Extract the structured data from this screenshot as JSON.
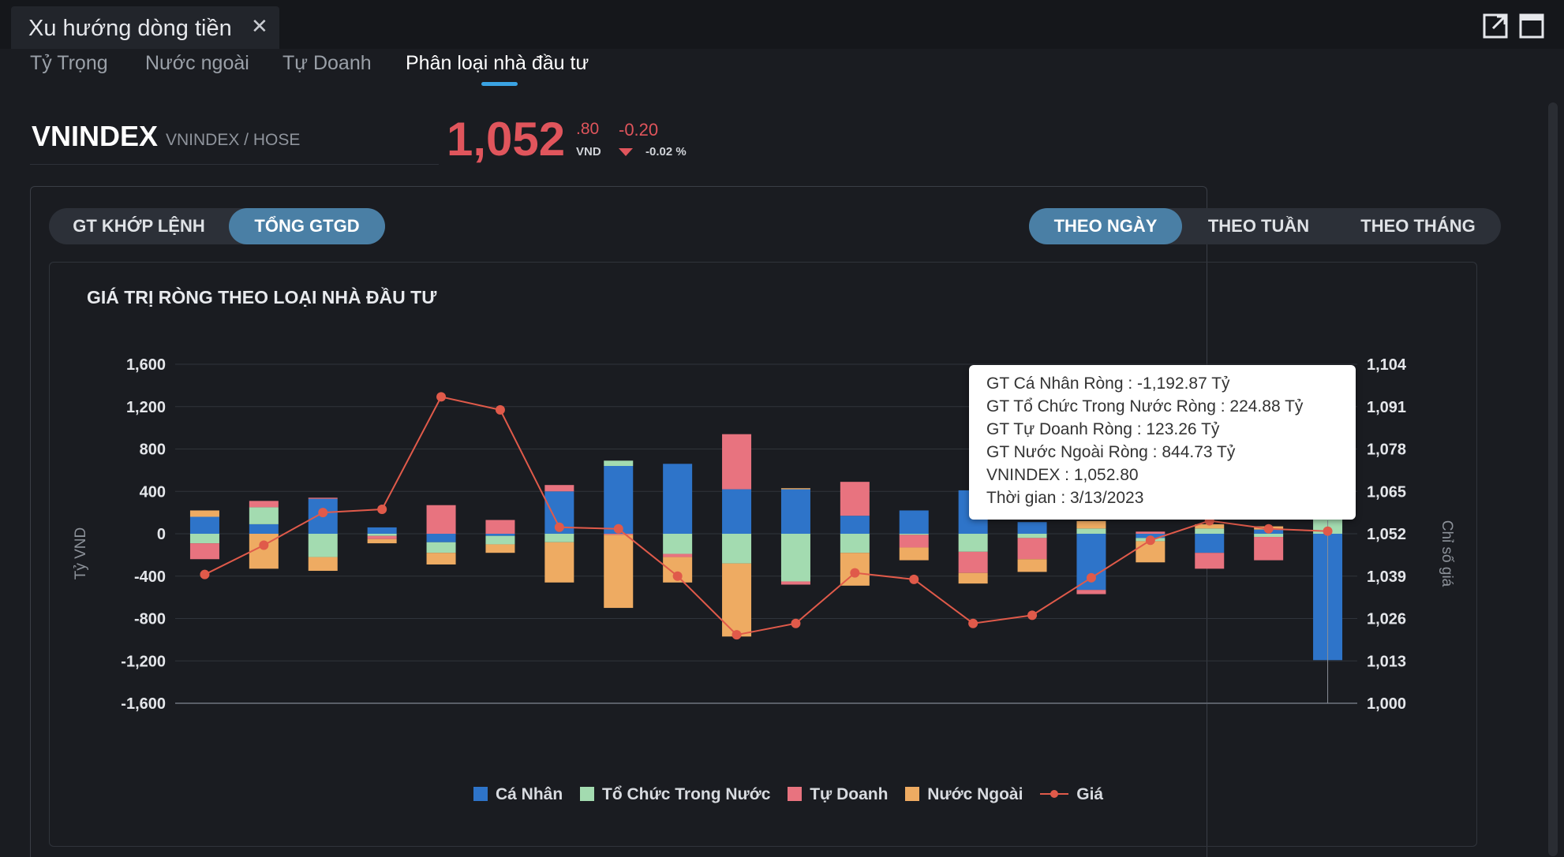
{
  "window": {
    "title": "Xu hướng dòng tiền",
    "close_glyph": "✕",
    "icons": [
      "external-link-icon",
      "maximize-icon"
    ]
  },
  "subtabs": [
    "Tỷ Trọng",
    "Nước ngoài",
    "Tự Doanh",
    "Phân loại nhà đầu tư"
  ],
  "active_subtab": "Phân loại nhà đầu tư",
  "quote": {
    "symbol": "VNINDEX",
    "exchange": "VNINDEX / HOSE",
    "price_int": "1,052",
    "price_dec": ".80",
    "unit": "VND",
    "change": "-0.20",
    "change_pct": "-0.02 %",
    "down_color": "#e0555c"
  },
  "value_toggle": {
    "options": [
      "GT KHỚP LỆNH",
      "TỔNG GTGD"
    ],
    "active": "TỔNG GTGD"
  },
  "period_toggle": {
    "options": [
      "THEO NGÀY",
      "THEO TUẦN",
      "THEO THÁNG"
    ],
    "active": "THEO NGÀY"
  },
  "chart_data": {
    "type": "bar",
    "title": "GIÁ TRỊ RÒNG THEO LOẠI NHÀ ĐẦU TƯ",
    "ylabel": "Tỷ VND",
    "y2label": "Chỉ số giá",
    "ylim": [
      -1600,
      1600
    ],
    "y_ticks": [
      "1,600",
      "1,200",
      "800",
      "400",
      "0",
      "-400",
      "-800",
      "-1,200",
      "-1,600"
    ],
    "y2lim": [
      1000,
      1104
    ],
    "y2_ticks": [
      "1,104",
      "1,091",
      "1,078",
      "1,065",
      "1,052",
      "1,039",
      "1,026",
      "1,013",
      "1,000"
    ],
    "stacked": true,
    "grid": true,
    "legend_position": "bottom",
    "series": [
      {
        "name": "Cá Nhân",
        "color": "#2e74c9",
        "values": [
          160,
          90,
          330,
          60,
          -80,
          -20,
          400,
          640,
          660,
          420,
          420,
          170,
          220,
          410,
          110,
          -530,
          -40,
          -180,
          40,
          -1192.87
        ]
      },
      {
        "name": "Tổ Chức Trong Nước",
        "color": "#a3dbb0",
        "values": [
          -90,
          160,
          -220,
          -20,
          -100,
          -80,
          -80,
          50,
          -190,
          -280,
          -450,
          -180,
          -10,
          -170,
          -40,
          50,
          -30,
          50,
          -30,
          224.88
        ]
      },
      {
        "name": "Tự Doanh",
        "color": "#e8737f",
        "values": [
          -150,
          60,
          10,
          -30,
          270,
          130,
          60,
          -10,
          -30,
          520,
          -30,
          320,
          -120,
          -200,
          -200,
          -40,
          20,
          -150,
          -220,
          123.26
        ]
      },
      {
        "name": "Nước Ngoài",
        "color": "#eeab62",
        "values": [
          60,
          -330,
          -130,
          -40,
          -110,
          -80,
          -380,
          -690,
          -240,
          -690,
          10,
          -310,
          -120,
          -100,
          -120,
          70,
          -200,
          40,
          30,
          844.73
        ]
      }
    ],
    "price_series": {
      "name": "Giá",
      "color": "#e05a4a",
      "values": [
        1039.5,
        1048.5,
        1058.5,
        1059.5,
        1094,
        1090,
        1054,
        1053.5,
        1039,
        1021,
        1024.5,
        1040,
        1038,
        1024.5,
        1027,
        1038.5,
        1050,
        1056,
        1053.5,
        1052.8
      ]
    }
  },
  "tooltip": {
    "lines": [
      "GT Cá Nhân Ròng  : -1,192.87 Tỷ",
      "GT Tổ Chức Trong Nước Ròng : 224.88 Tỷ",
      "GT Tự Doanh Ròng : 123.26 Tỷ",
      "GT Nước Ngoài Ròng : 844.73 Tỷ",
      "VNINDEX : 1,052.80",
      "Thời gian : 3/13/2023"
    ]
  }
}
